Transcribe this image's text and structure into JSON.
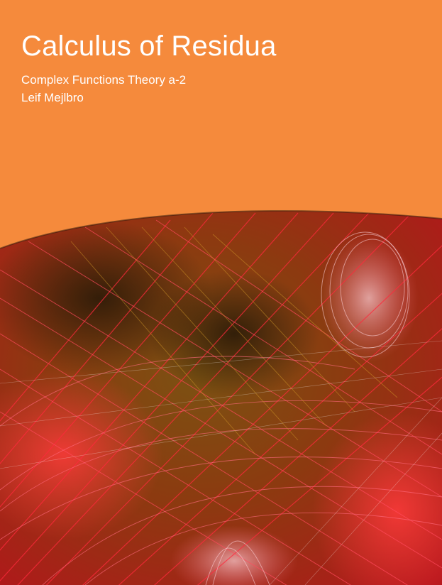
{
  "cover": {
    "title": "Calculus of Residua",
    "subtitle": "Complex Functions Theory a-2",
    "author": "Leif Mejlbro"
  },
  "colors": {
    "background": "#f58a3c",
    "text": "#ffffff",
    "artwork_dark": "#3a2410",
    "artwork_brown": "#8a5a14",
    "artwork_red": "#e0182a",
    "artwork_pink": "#ff6f86"
  },
  "artwork": {
    "description_icon": "fractal-artwork"
  }
}
